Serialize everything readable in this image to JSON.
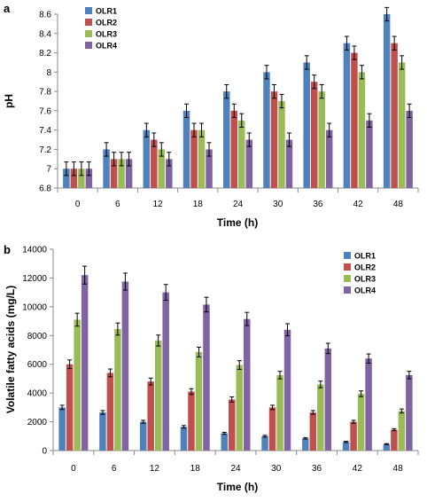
{
  "chart_data": [
    {
      "panel": "a",
      "type": "bar",
      "xlabel": "Time (h)",
      "ylabel": "pH",
      "ylim": [
        6.8,
        8.6
      ],
      "yticks": [
        6.8,
        7,
        7.2,
        7.4,
        7.6,
        7.8,
        8,
        8.2,
        8.4,
        8.6
      ],
      "ytick_labels": [
        "6.8",
        "7",
        "7.2",
        "7.4",
        "7.6",
        "7.8",
        "8",
        "8.2",
        "8.4",
        "8.6"
      ],
      "categories": [
        "0",
        "6",
        "12",
        "18",
        "24",
        "30",
        "36",
        "42",
        "48"
      ],
      "series": [
        {
          "name": "OLR1",
          "color": "#4f81bd",
          "values": [
            7.0,
            7.2,
            7.4,
            7.6,
            7.8,
            8.0,
            8.1,
            8.3,
            8.6
          ],
          "errors": [
            0.07,
            0.07,
            0.07,
            0.07,
            0.07,
            0.07,
            0.07,
            0.07,
            0.07
          ]
        },
        {
          "name": "OLR2",
          "color": "#c0504d",
          "values": [
            7.0,
            7.1,
            7.3,
            7.4,
            7.6,
            7.8,
            7.9,
            8.2,
            8.3
          ],
          "errors": [
            0.07,
            0.07,
            0.07,
            0.07,
            0.07,
            0.07,
            0.07,
            0.07,
            0.07
          ]
        },
        {
          "name": "OLR3",
          "color": "#9bbb59",
          "values": [
            7.0,
            7.1,
            7.2,
            7.4,
            7.5,
            7.7,
            7.8,
            8.0,
            8.1
          ],
          "errors": [
            0.07,
            0.07,
            0.07,
            0.07,
            0.07,
            0.07,
            0.07,
            0.07,
            0.07
          ]
        },
        {
          "name": "OLR4",
          "color": "#8064a2",
          "values": [
            7.0,
            7.1,
            7.1,
            7.2,
            7.3,
            7.3,
            7.4,
            7.5,
            7.6
          ],
          "errors": [
            0.07,
            0.07,
            0.07,
            0.07,
            0.07,
            0.07,
            0.07,
            0.07,
            0.07
          ]
        }
      ],
      "legend_position": "top-left",
      "grid": false
    },
    {
      "panel": "b",
      "type": "bar",
      "xlabel": "Time (h)",
      "ylabel": "Volatile fatty acids (mg/L)",
      "ylim": [
        0,
        14000
      ],
      "yticks": [
        0,
        2000,
        4000,
        6000,
        8000,
        10000,
        12000,
        14000
      ],
      "ytick_labels": [
        "0",
        "2000",
        "4000",
        "6000",
        "8000",
        "10000",
        "12000",
        "14000"
      ],
      "categories": [
        "0",
        "6",
        "12",
        "18",
        "24",
        "30",
        "36",
        "42",
        "48"
      ],
      "series": [
        {
          "name": "OLR1",
          "color": "#4f81bd",
          "values": [
            3000,
            2650,
            2000,
            1650,
            1200,
            1000,
            850,
            600,
            450
          ],
          "errors": [
            150,
            130,
            100,
            90,
            70,
            60,
            50,
            40,
            30
          ]
        },
        {
          "name": "OLR2",
          "color": "#c0504d",
          "values": [
            6000,
            5400,
            4800,
            4100,
            3550,
            3000,
            2650,
            2000,
            1450
          ],
          "errors": [
            300,
            270,
            240,
            200,
            180,
            150,
            130,
            100,
            70
          ]
        },
        {
          "name": "OLR3",
          "color": "#9bbb59",
          "values": [
            9100,
            8450,
            7650,
            6850,
            5950,
            5250,
            4600,
            3950,
            2750
          ],
          "errors": [
            450,
            420,
            380,
            340,
            300,
            260,
            230,
            200,
            140
          ]
        },
        {
          "name": "OLR4",
          "color": "#8064a2",
          "values": [
            12200,
            11750,
            11000,
            10150,
            9150,
            8400,
            7100,
            6400,
            5250
          ],
          "errors": [
            620,
            590,
            550,
            510,
            460,
            420,
            360,
            320,
            260
          ]
        }
      ],
      "legend_position": "top-right",
      "grid": false
    }
  ]
}
